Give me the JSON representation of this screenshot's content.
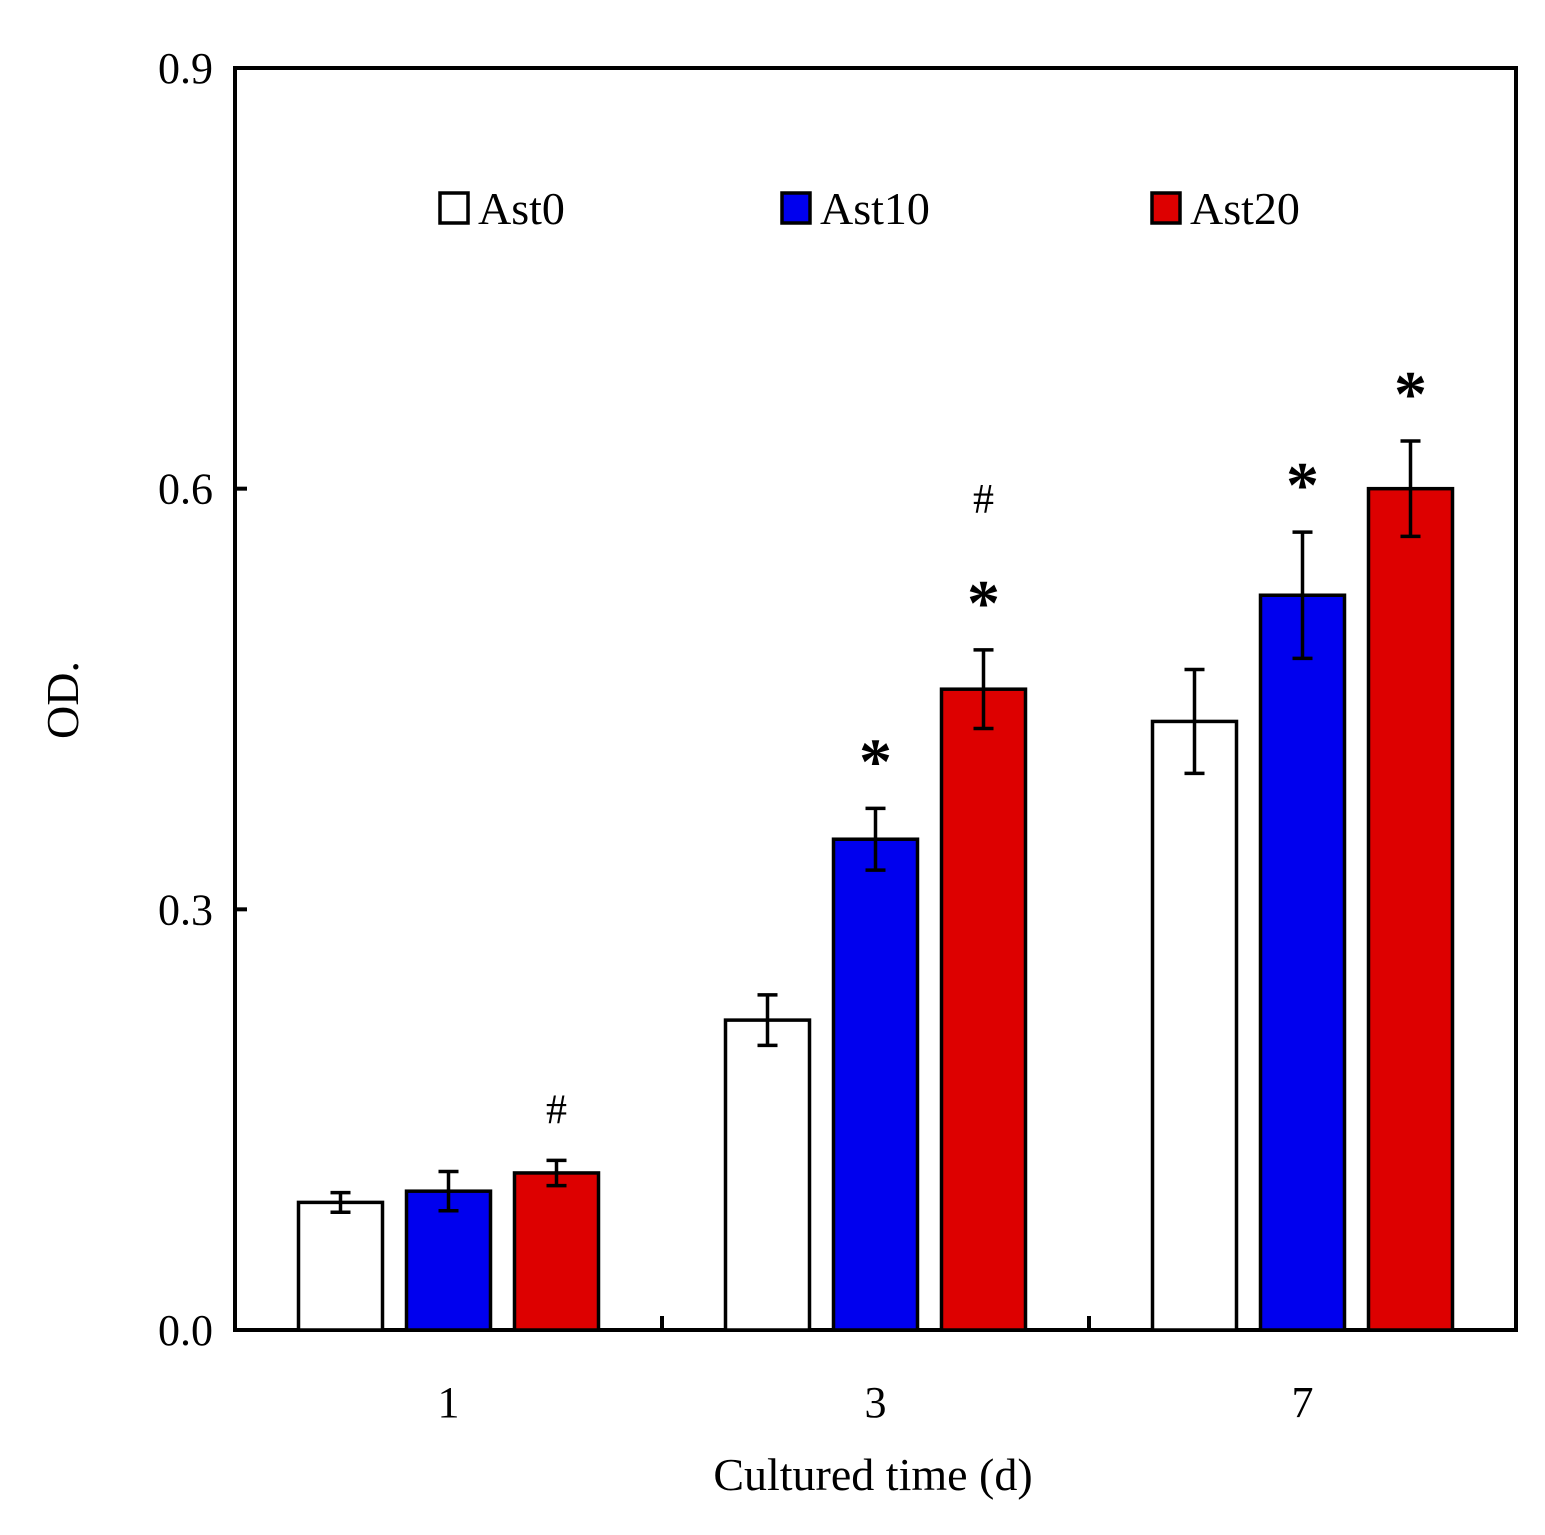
{
  "chart_data": {
    "type": "bar",
    "title": "",
    "xlabel": "Cultured time (d)",
    "ylabel": "OD.",
    "ylim": [
      0,
      0.9
    ],
    "yticks": [
      "0.0",
      "0.3",
      "0.6",
      "0.9"
    ],
    "ytick_values": [
      0,
      0.3,
      0.6,
      0.9
    ],
    "categories": [
      "1",
      "3",
      "7"
    ],
    "legend_position": "top",
    "series": [
      {
        "name": "Ast0",
        "color": "#ffffff",
        "values": [
          0.091,
          0.221,
          0.434
        ],
        "errors": [
          0.007,
          0.018,
          0.037
        ]
      },
      {
        "name": "Ast10",
        "color": "#0000ee",
        "values": [
          0.099,
          0.35,
          0.524
        ],
        "errors": [
          0.014,
          0.022,
          0.045
        ]
      },
      {
        "name": "Ast20",
        "color": "#dd0000",
        "values": [
          0.112,
          0.457,
          0.6
        ],
        "errors": [
          0.009,
          0.028,
          0.034
        ]
      }
    ],
    "annotations": [
      {
        "category": 0,
        "series": 2,
        "marks": [
          "#"
        ]
      },
      {
        "category": 1,
        "series": 1,
        "marks": [
          "*"
        ]
      },
      {
        "category": 1,
        "series": 2,
        "marks": [
          "*",
          "#"
        ]
      },
      {
        "category": 2,
        "series": 1,
        "marks": [
          "*"
        ]
      },
      {
        "category": 2,
        "series": 2,
        "marks": [
          "*"
        ]
      }
    ]
  }
}
